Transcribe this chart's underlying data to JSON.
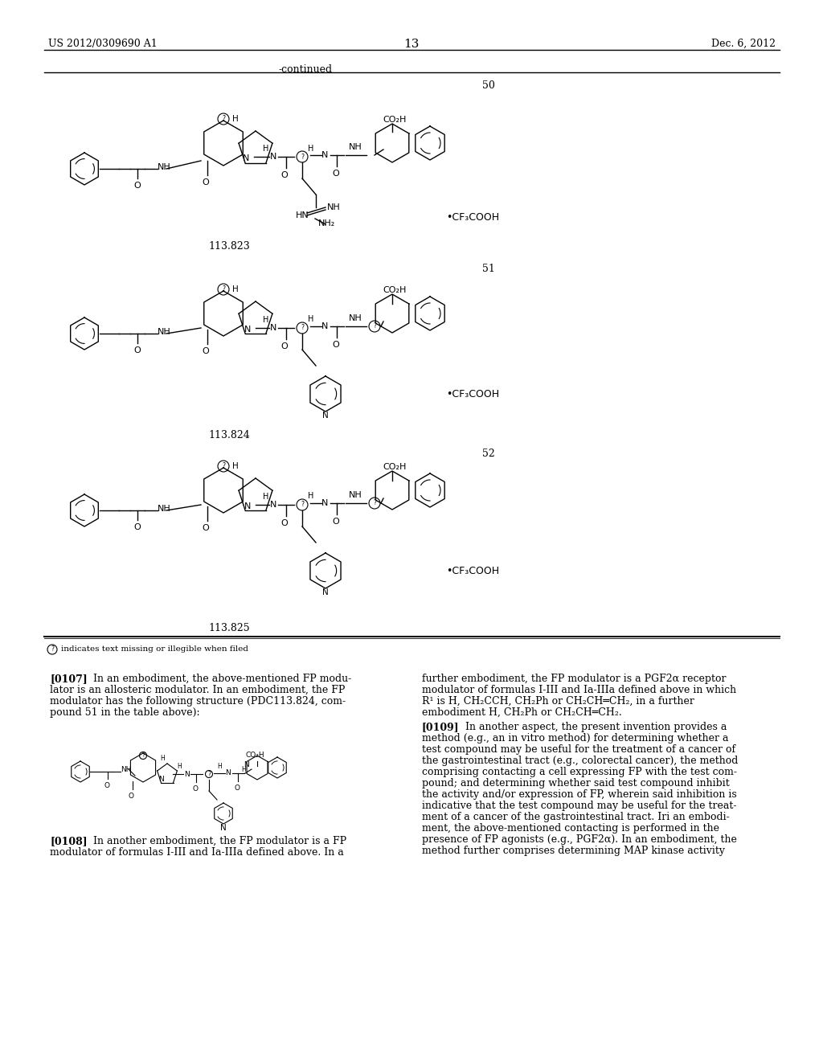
{
  "page_header_left": "US 2012/0309690 A1",
  "page_header_right": "Dec. 6, 2012",
  "page_number": "13",
  "continued_text": "-continued",
  "background_color": "#ffffff",
  "text_color": "#000000"
}
